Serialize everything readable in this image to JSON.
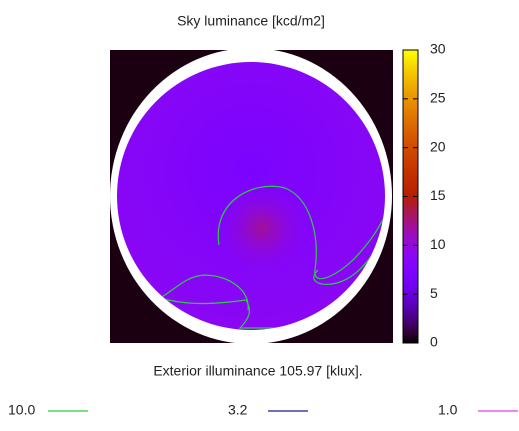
{
  "chart_data": {
    "type": "heatmap",
    "title": "Sky luminance [kcd/m2]",
    "xlabel": "Exterior illuminance 105.97 [klux].",
    "clim": [
      0,
      30
    ],
    "cticks": [
      0,
      5,
      10,
      15,
      20,
      25,
      30
    ],
    "sky_min": 7,
    "horizon": 9,
    "sun_peak": 12,
    "contours": [
      {
        "name": "10.0",
        "color": "#2ecc40"
      },
      {
        "name": "3.2",
        "color": "#1a1a8c"
      },
      {
        "name": "1.0",
        "color": "#e040e0"
      }
    ]
  }
}
